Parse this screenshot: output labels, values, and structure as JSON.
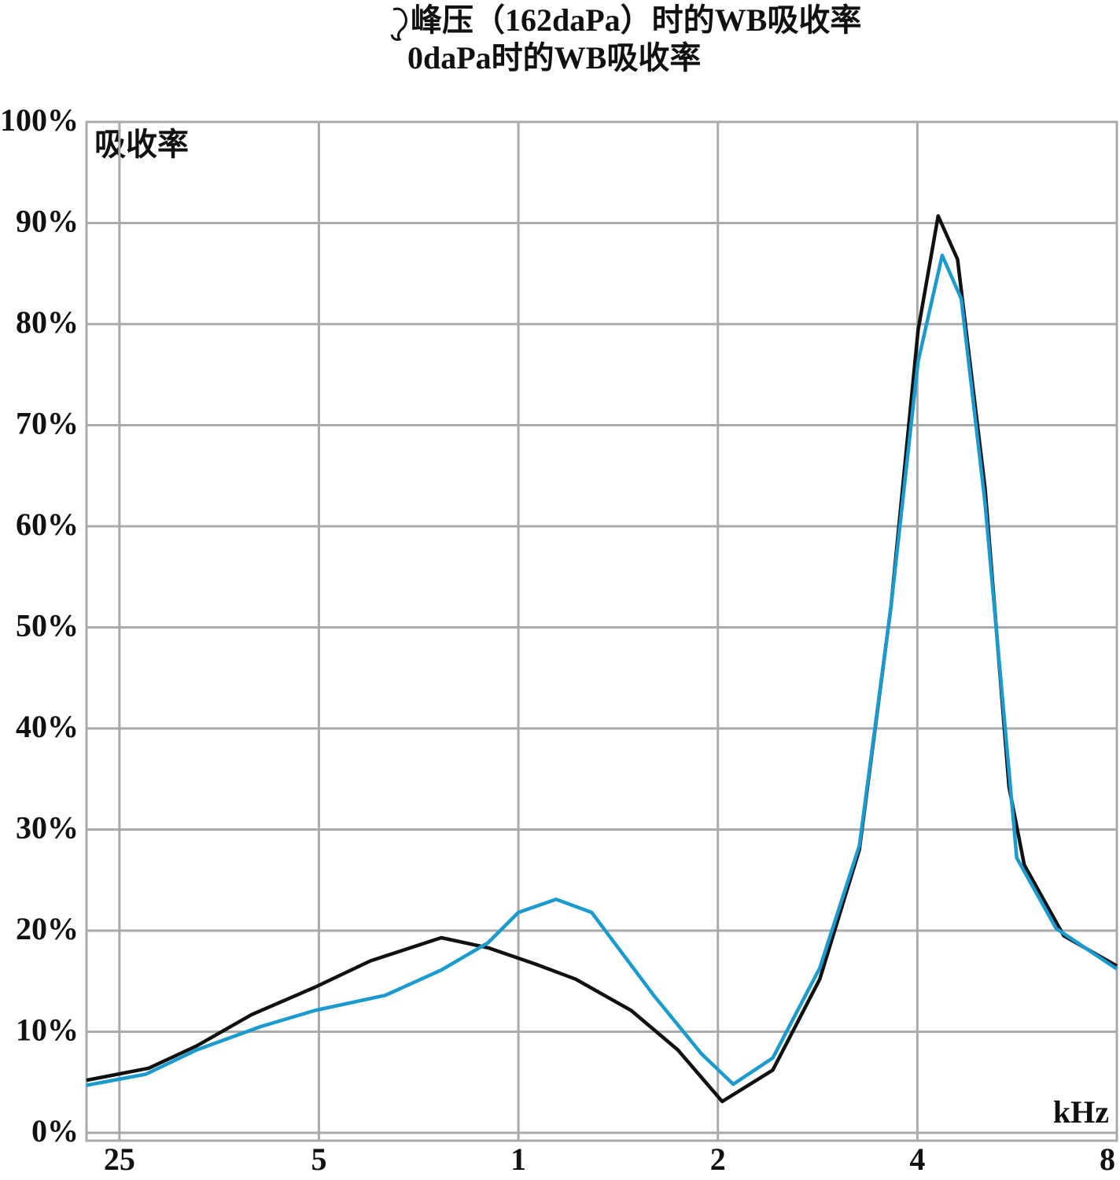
{
  "chart_data": {
    "type": "line",
    "x_label": "kHz",
    "y_label": "吸收率",
    "xlim": [
      0.223,
      8
    ],
    "xlog": true,
    "xticks": [
      {
        "value": 0.25,
        "label": "25"
      },
      {
        "value": 0.5,
        "label": "5"
      },
      1,
      2,
      4,
      8
    ],
    "ylim": [
      0,
      100
    ],
    "yticks": [
      {
        "value": 0,
        "label": "0%"
      },
      {
        "value": 10,
        "label": "10%"
      },
      {
        "value": 20,
        "label": "20%"
      },
      {
        "value": 30,
        "label": "30%"
      },
      {
        "value": 40,
        "label": "40%"
      },
      {
        "value": 50,
        "label": "50%"
      },
      {
        "value": 60,
        "label": "60%"
      },
      {
        "value": 70,
        "label": "70%"
      },
      {
        "value": 80,
        "label": "80%"
      },
      {
        "value": 90,
        "label": "90%"
      },
      {
        "value": 100,
        "label": "100%"
      }
    ],
    "grid": true,
    "series": [
      {
        "name": "峰压（162daPa）时的WB吸收率",
        "color": "#111111",
        "x": [
          0.223,
          0.277,
          0.327,
          0.396,
          0.493,
          0.598,
          0.765,
          0.9,
          1.06,
          1.22,
          1.48,
          1.74,
          2.03,
          2.42,
          2.85,
          3.27,
          3.65,
          4.01,
          4.3,
          4.6,
          5.06,
          5.5,
          5.8,
          6.65,
          8
        ],
        "values": [
          5.2,
          6.4,
          8.6,
          11.7,
          14.4,
          17.0,
          19.3,
          18.3,
          16.7,
          15.2,
          12.1,
          8.2,
          3.1,
          6.2,
          15.2,
          28.0,
          52.1,
          79.4,
          90.7,
          86.4,
          63.8,
          34.2,
          26.5,
          19.5,
          16.5
        ]
      },
      {
        "name": "0daPa时的WB吸收率",
        "color": "#1a9bd0",
        "x": [
          0.223,
          0.274,
          0.327,
          0.408,
          0.493,
          0.63,
          0.765,
          0.9,
          1.0,
          1.14,
          1.29,
          1.6,
          1.89,
          2.11,
          2.42,
          2.85,
          3.27,
          3.65,
          4.01,
          4.36,
          4.66,
          5.06,
          5.65,
          6.48,
          8
        ],
        "values": [
          4.7,
          5.8,
          8.2,
          10.5,
          12.1,
          13.6,
          16.1,
          18.8,
          21.8,
          23.1,
          21.8,
          13.6,
          7.8,
          4.8,
          7.4,
          16.3,
          28.4,
          52.1,
          76.3,
          86.8,
          82.5,
          62.3,
          27.2,
          20.2,
          16.2
        ]
      }
    ]
  }
}
